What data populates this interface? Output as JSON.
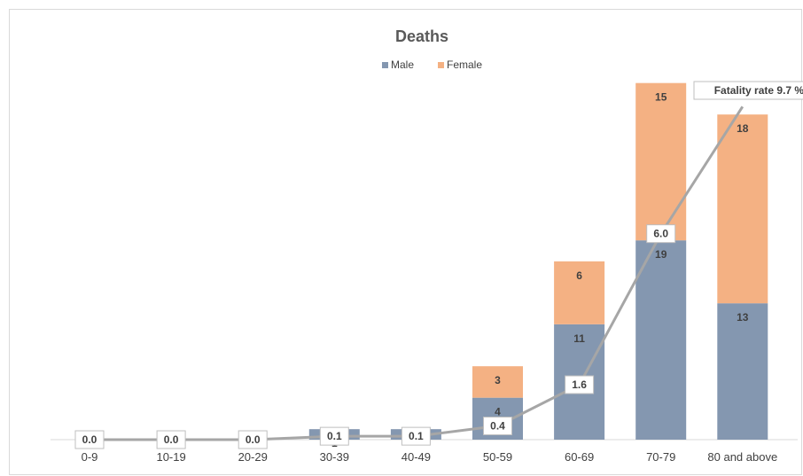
{
  "chart_data": {
    "type": "bar",
    "stacked": true,
    "title": "Deaths",
    "categories": [
      "0-9",
      "10-19",
      "20-29",
      "30-39",
      "40-49",
      "50-59",
      "60-69",
      "70-79",
      "80 and above"
    ],
    "series": [
      {
        "name": "Male",
        "color": "#8497b0",
        "values": [
          0,
          0,
          0,
          1,
          1,
          4,
          11,
          19,
          13
        ],
        "labels": [
          "",
          "",
          "",
          "1",
          "",
          "4",
          "11",
          "19",
          "13"
        ]
      },
      {
        "name": "Female",
        "color": "#f4b183",
        "values": [
          0,
          0,
          0,
          0,
          0,
          3,
          6,
          15,
          18
        ],
        "labels": [
          "",
          "",
          "",
          "",
          "",
          "3",
          "6",
          "15",
          "18"
        ]
      }
    ],
    "line_series": {
      "color": "#a6a6a6",
      "values": [
        0.0,
        0.0,
        0.0,
        0.1,
        0.1,
        0.4,
        1.6,
        6.0,
        9.7
      ],
      "labels": [
        "0.0",
        "0.0",
        "0.0",
        "0.1",
        "0.1",
        "0.4",
        "1.6",
        "6.0",
        "Fatality rate 9.7 %"
      ]
    },
    "legend_position": "top",
    "ylim": [
      0,
      36
    ],
    "line_ylim": [
      0,
      11
    ],
    "grid": false
  }
}
